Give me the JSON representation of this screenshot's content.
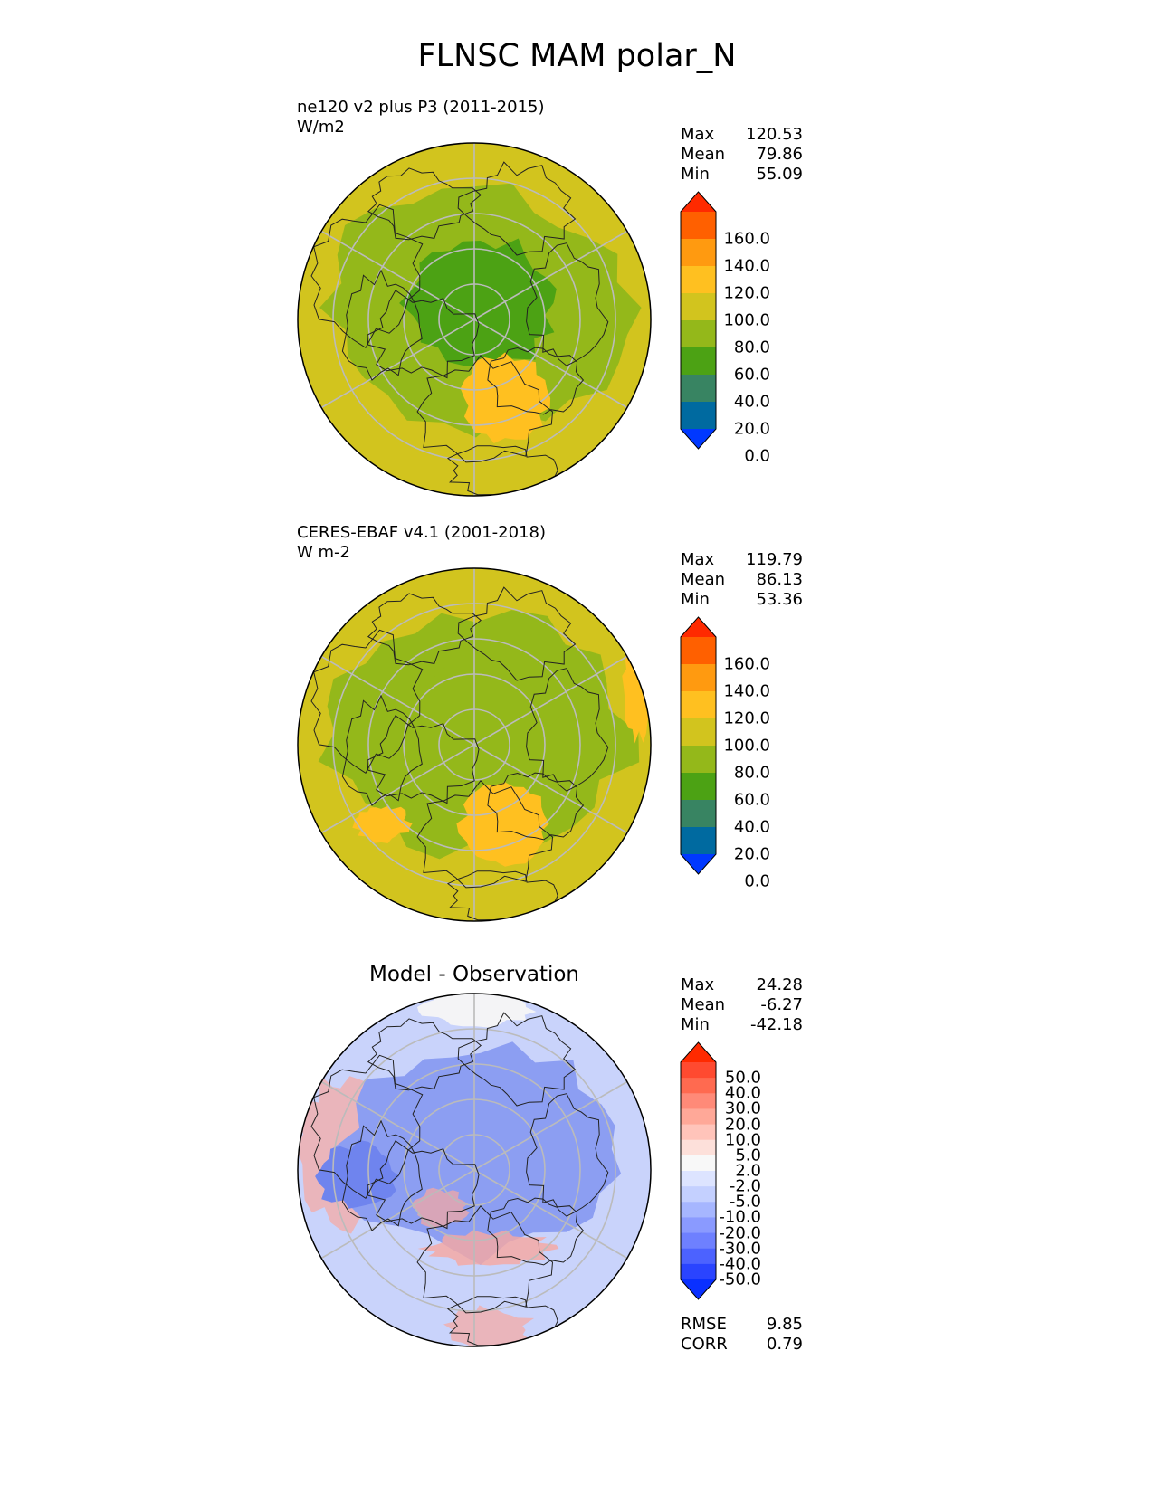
{
  "title": "FLNSC MAM polar_N",
  "panels": [
    {
      "id": "model",
      "title_lines": [
        "ne120 v2 plus P3 (2011-2015)",
        "W/m2"
      ],
      "stats": [
        {
          "label": "Max",
          "value": "120.53"
        },
        {
          "label": "Mean",
          "value": "79.86"
        },
        {
          "label": "Min",
          "value": "55.09"
        }
      ]
    },
    {
      "id": "obs",
      "title_lines": [
        "CERES-EBAF v4.1 (2001-2018)",
        "W m-2"
      ],
      "stats": [
        {
          "label": "Max",
          "value": "119.79"
        },
        {
          "label": "Mean",
          "value": "86.13"
        },
        {
          "label": "Min",
          "value": "53.36"
        }
      ]
    },
    {
      "id": "diff",
      "title": "Model - Observation",
      "stats": [
        {
          "label": "Max",
          "value": "24.28"
        },
        {
          "label": "Mean",
          "value": "-6.27"
        },
        {
          "label": "Min",
          "value": "-42.18"
        }
      ],
      "extra_stats": [
        {
          "label": "RMSE",
          "value": "9.85"
        },
        {
          "label": "CORR",
          "value": "0.79"
        }
      ]
    }
  ],
  "colorbar_main": {
    "ticks": [
      "160.0",
      "140.0",
      "120.0",
      "100.0",
      "80.0",
      "60.0",
      "40.0",
      "20.0",
      "0.0"
    ],
    "colors_top_to_bottom": [
      "#ff2a00",
      "#ff6000",
      "#ff9a10",
      "#ffc020",
      "#d2c41e",
      "#94b81a",
      "#4ca214",
      "#388462",
      "#006aa0",
      "#0038ff"
    ]
  },
  "colorbar_diff": {
    "ticks": [
      "50.0",
      "40.0",
      "30.0",
      "20.0",
      "10.0",
      "5.0",
      "2.0",
      "-2.0",
      "-5.0",
      "-10.0",
      "-20.0",
      "-30.0",
      "-40.0",
      "-50.0"
    ],
    "colors_top_to_bottom": [
      "#ff2a00",
      "#ff4a30",
      "#ff6a50",
      "#ff8a78",
      "#ffa898",
      "#ffc4ba",
      "#fde0da",
      "#f8f8f8",
      "#dde4ff",
      "#c4d0ff",
      "#a6b6ff",
      "#8a9aff",
      "#6e80ff",
      "#4c62ff",
      "#2a44ff",
      "#0a30ff"
    ]
  },
  "map_colors": {
    "main_base": "#d2c41e",
    "main_level_60": "#94b81a",
    "main_level_40": "#4ca214",
    "main_level_100": "#ffc020",
    "diff_blue": "#8c9ef2",
    "diff_light_blue": "#c9d3fb",
    "diff_red": "#f8a8a0",
    "grid": "#bbbbbb",
    "coast": "#222222"
  }
}
